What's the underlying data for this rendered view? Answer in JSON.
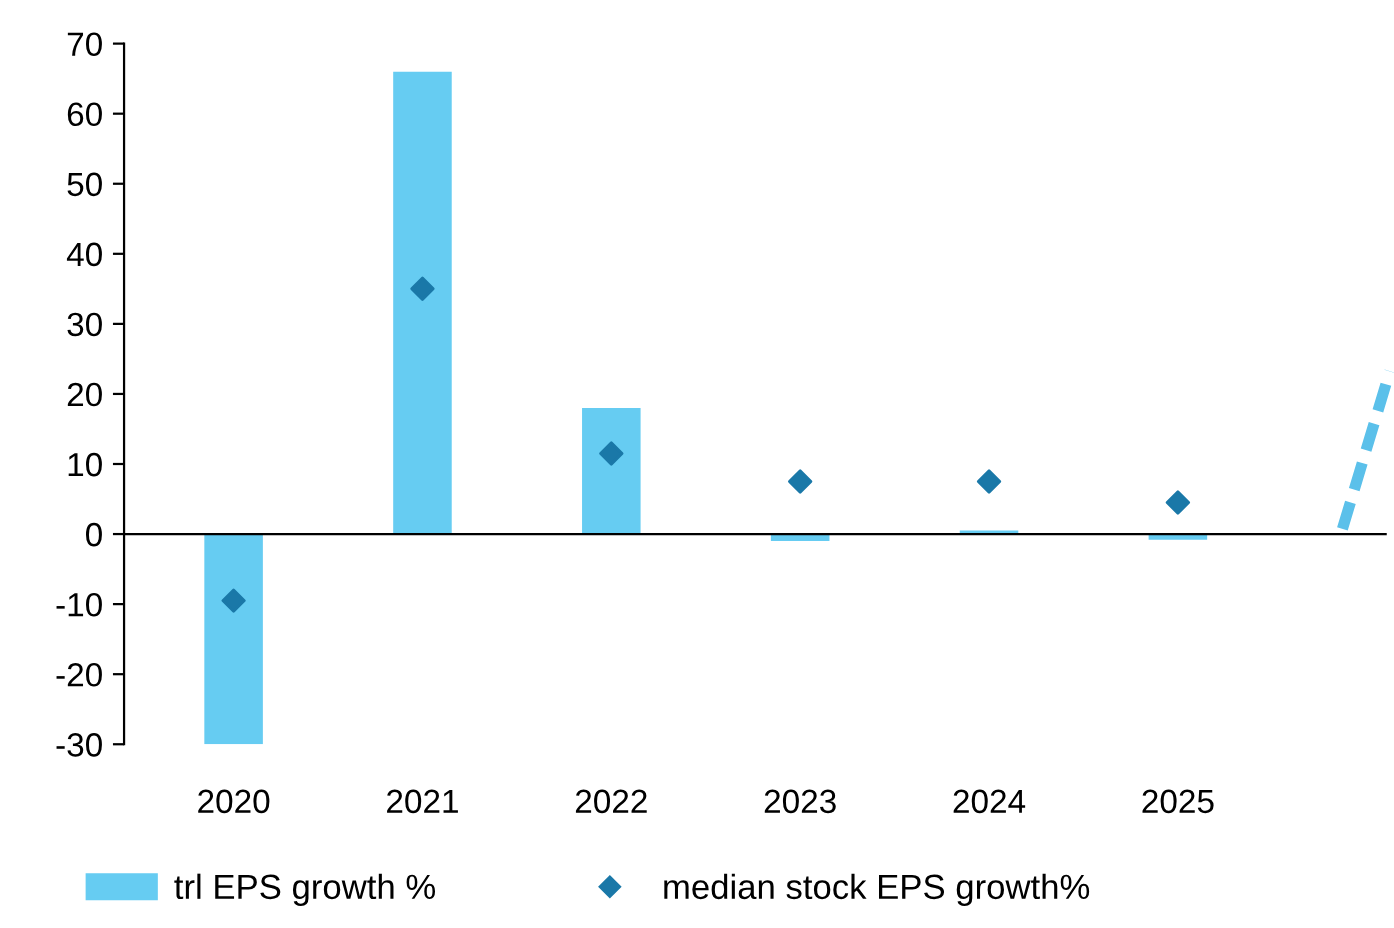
{
  "chart_data": {
    "type": "bar",
    "categories": [
      "2020",
      "2021",
      "2022",
      "2023",
      "2024",
      "2025"
    ],
    "series": [
      {
        "name": "trl EPS growth %",
        "color": "#66ccf2",
        "values": [
          -30,
          66,
          18,
          -1,
          0.5,
          -0.8
        ]
      },
      {
        "name": "median stock EPS growth%",
        "type": "scatter",
        "color": "#1a78a8",
        "marker": "diamond",
        "values": [
          -9.5,
          35,
          11.5,
          7.5,
          7.5,
          4.5
        ]
      }
    ],
    "ylim": [
      -30,
      70
    ],
    "yticks": [
      -30,
      -20,
      -10,
      0,
      10,
      20,
      30,
      40,
      50,
      60,
      70
    ],
    "legend": "bottom"
  }
}
